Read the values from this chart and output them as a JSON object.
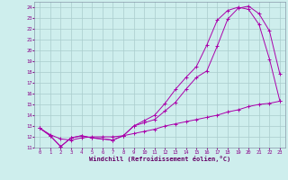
{
  "xlabel": "Windchill (Refroidissement éolien,°C)",
  "bg_color": "#ceeeed",
  "line_color": "#aa00aa",
  "grid_color": "#aacccc",
  "xlim": [
    -0.5,
    23.5
  ],
  "ylim": [
    11,
    24.5
  ],
  "xticks": [
    0,
    1,
    2,
    3,
    4,
    5,
    6,
    7,
    8,
    9,
    10,
    11,
    12,
    13,
    14,
    15,
    16,
    17,
    18,
    19,
    20,
    21,
    22,
    23
  ],
  "yticks": [
    11,
    12,
    13,
    14,
    15,
    16,
    17,
    18,
    19,
    20,
    21,
    22,
    23,
    24
  ],
  "line1_x": [
    0,
    1,
    2,
    3,
    4,
    5,
    6,
    7,
    8,
    9,
    10,
    11,
    12,
    13,
    14,
    15,
    16,
    17,
    18,
    19,
    20,
    21,
    22,
    23
  ],
  "line1_y": [
    12.8,
    12.1,
    11.1,
    11.9,
    12.1,
    11.9,
    11.8,
    11.7,
    12.1,
    13.0,
    13.3,
    13.6,
    14.4,
    15.2,
    16.4,
    17.5,
    18.1,
    20.4,
    22.9,
    23.9,
    24.1,
    23.4,
    21.8,
    17.8
  ],
  "line2_x": [
    0,
    1,
    2,
    3,
    4,
    5,
    6,
    7,
    8,
    9,
    10,
    11,
    12,
    13,
    14,
    15,
    16,
    17,
    18,
    19,
    20,
    21,
    22,
    23
  ],
  "line2_y": [
    12.8,
    12.1,
    11.1,
    11.9,
    12.1,
    11.9,
    11.8,
    11.7,
    12.1,
    13.0,
    13.5,
    14.0,
    15.1,
    16.4,
    17.5,
    18.5,
    20.5,
    22.8,
    23.7,
    24.0,
    23.8,
    22.4,
    19.2,
    15.3
  ],
  "line3_x": [
    0,
    1,
    2,
    3,
    4,
    5,
    6,
    7,
    8,
    9,
    10,
    11,
    12,
    13,
    14,
    15,
    16,
    17,
    18,
    19,
    20,
    21,
    22,
    23
  ],
  "line3_y": [
    12.8,
    12.2,
    11.8,
    11.7,
    11.9,
    12.0,
    12.0,
    12.0,
    12.1,
    12.3,
    12.5,
    12.7,
    13.0,
    13.2,
    13.4,
    13.6,
    13.8,
    14.0,
    14.3,
    14.5,
    14.8,
    15.0,
    15.1,
    15.3
  ]
}
